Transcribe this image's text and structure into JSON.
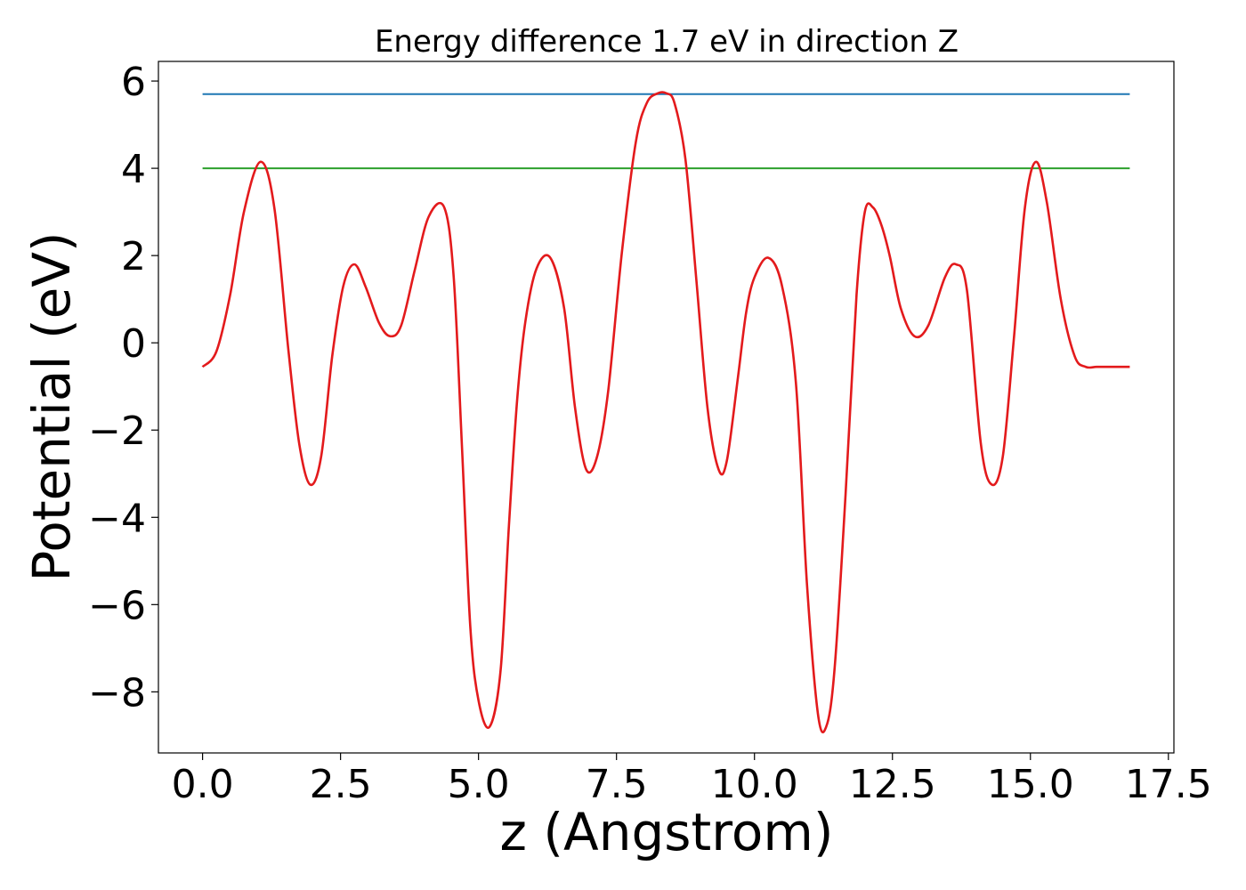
{
  "chart_data": {
    "type": "line",
    "title": "Energy difference 1.7 eV in direction Z",
    "xlabel": "z (Angstrom)",
    "ylabel": "Potential (eV)",
    "xlim": [
      -0.8,
      17.6
    ],
    "ylim": [
      -9.4,
      6.45
    ],
    "xticks": [
      0.0,
      2.5,
      5.0,
      7.5,
      10.0,
      12.5,
      15.0,
      17.5
    ],
    "xtick_labels": [
      "0.0",
      "2.5",
      "5.0",
      "7.5",
      "10.0",
      "12.5",
      "15.0",
      "17.5"
    ],
    "yticks": [
      6,
      4,
      2,
      0,
      -2,
      -4,
      -6,
      -8
    ],
    "ytick_labels": [
      "6",
      "4",
      "2",
      "0",
      "−2",
      "−4",
      "−6",
      "−8"
    ],
    "grid": false,
    "legend": false,
    "series": [
      {
        "color": "#1f77b4",
        "kind": "hline",
        "x": [
          0.0,
          16.8
        ],
        "y": [
          5.7,
          5.7
        ]
      },
      {
        "color": "#2ca02c",
        "kind": "hline",
        "x": [
          0.0,
          16.8
        ],
        "y": [
          4.0,
          4.0
        ]
      },
      {
        "color": "#e31a1c",
        "kind": "curve",
        "x": [
          0.0,
          0.25,
          0.5,
          0.75,
          1.05,
          1.3,
          1.55,
          1.75,
          1.95,
          2.15,
          2.35,
          2.55,
          2.75,
          2.95,
          3.2,
          3.4,
          3.6,
          3.85,
          4.1,
          4.38,
          4.55,
          4.7,
          4.85,
          5.0,
          5.2,
          5.4,
          5.55,
          5.7,
          5.85,
          6.05,
          6.3,
          6.55,
          6.75,
          6.95,
          7.15,
          7.35,
          7.6,
          7.85,
          8.05,
          8.25,
          8.4,
          8.55,
          8.75,
          8.95,
          9.15,
          9.35,
          9.5,
          9.7,
          9.85,
          10.0,
          10.25,
          10.5,
          10.75,
          10.95,
          11.15,
          11.3,
          11.45,
          11.65,
          11.85,
          12.0,
          12.15,
          12.3,
          12.45,
          12.65,
          12.9,
          13.15,
          13.45,
          13.65,
          13.85,
          14.1,
          14.3,
          14.5,
          14.7,
          14.9,
          15.1,
          15.3,
          15.55,
          15.8,
          16.0,
          16.2,
          16.45,
          16.65,
          16.8
        ],
        "y": [
          -0.55,
          -0.2,
          1.1,
          3.0,
          4.15,
          3.1,
          -0.1,
          -2.3,
          -3.25,
          -2.6,
          -0.3,
          1.3,
          1.8,
          1.3,
          0.45,
          0.15,
          0.4,
          1.7,
          2.9,
          3.1,
          1.5,
          -2.4,
          -6.5,
          -8.2,
          -8.8,
          -7.5,
          -4.2,
          -1.3,
          0.5,
          1.7,
          1.95,
          0.8,
          -1.5,
          -2.9,
          -2.6,
          -1.1,
          2.1,
          4.6,
          5.5,
          5.72,
          5.72,
          5.5,
          4.2,
          1.4,
          -1.5,
          -2.9,
          -2.7,
          -0.8,
          0.7,
          1.5,
          1.95,
          1.3,
          -0.9,
          -5.5,
          -8.5,
          -8.8,
          -7.5,
          -3.5,
          1.1,
          3.0,
          3.1,
          2.7,
          2.0,
          0.8,
          0.15,
          0.4,
          1.5,
          1.8,
          1.2,
          -2.3,
          -3.25,
          -2.6,
          0.1,
          3.1,
          4.15,
          3.2,
          1.0,
          -0.3,
          -0.55,
          -0.55,
          -0.55,
          -0.55,
          -0.55
        ]
      }
    ]
  }
}
